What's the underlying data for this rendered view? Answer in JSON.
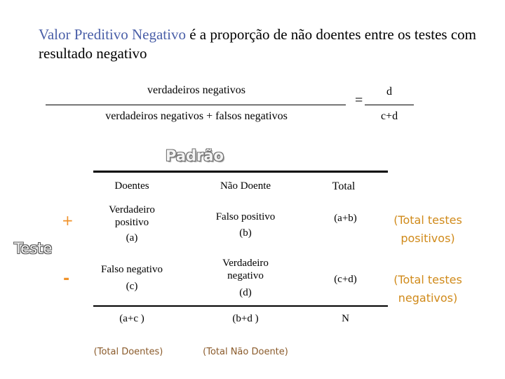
{
  "title": {
    "highlight": "Valor Preditivo Negativo",
    "rest": " é a proporção de não doentes entre os testes com resultado negativo"
  },
  "formula": {
    "numerator": "verdadeiros negativos",
    "denominator": "verdadeiros negativos + falsos negativos",
    "equals": "=",
    "short_numerator": "d",
    "short_denominator": "c+d"
  },
  "table": {
    "group_header": "Padrão",
    "row_group_label": "Teste",
    "headers": [
      "Doentes",
      "Não Doente",
      "Total"
    ],
    "row_signs": [
      "+",
      "-"
    ],
    "rows": [
      {
        "c1_line1": "Verdadeiro",
        "c1_line2": "positivo",
        "c1_letter": "(a)",
        "c2_line1": "Falso positivo",
        "c2_line2": "",
        "c2_letter": "(b)",
        "total": "(a+b)",
        "note": "(Total testes positivos)"
      },
      {
        "c1_line1": "Falso negativo",
        "c1_line2": "",
        "c1_letter": "(c)",
        "c2_line1": "Verdadeiro",
        "c2_line2": "negativo",
        "c2_letter": "(d)",
        "total": "(c+d)",
        "note": "(Total testes negativos)"
      }
    ],
    "totals": [
      "(a+c )",
      "(b+d )",
      "N"
    ],
    "totals_notes": [
      "(Total Doentes)",
      "(Total Não Doente)"
    ]
  },
  "colors": {
    "title_highlight": "#4a5fa8",
    "sign": "#f0922a",
    "note": "#d08a1a"
  }
}
